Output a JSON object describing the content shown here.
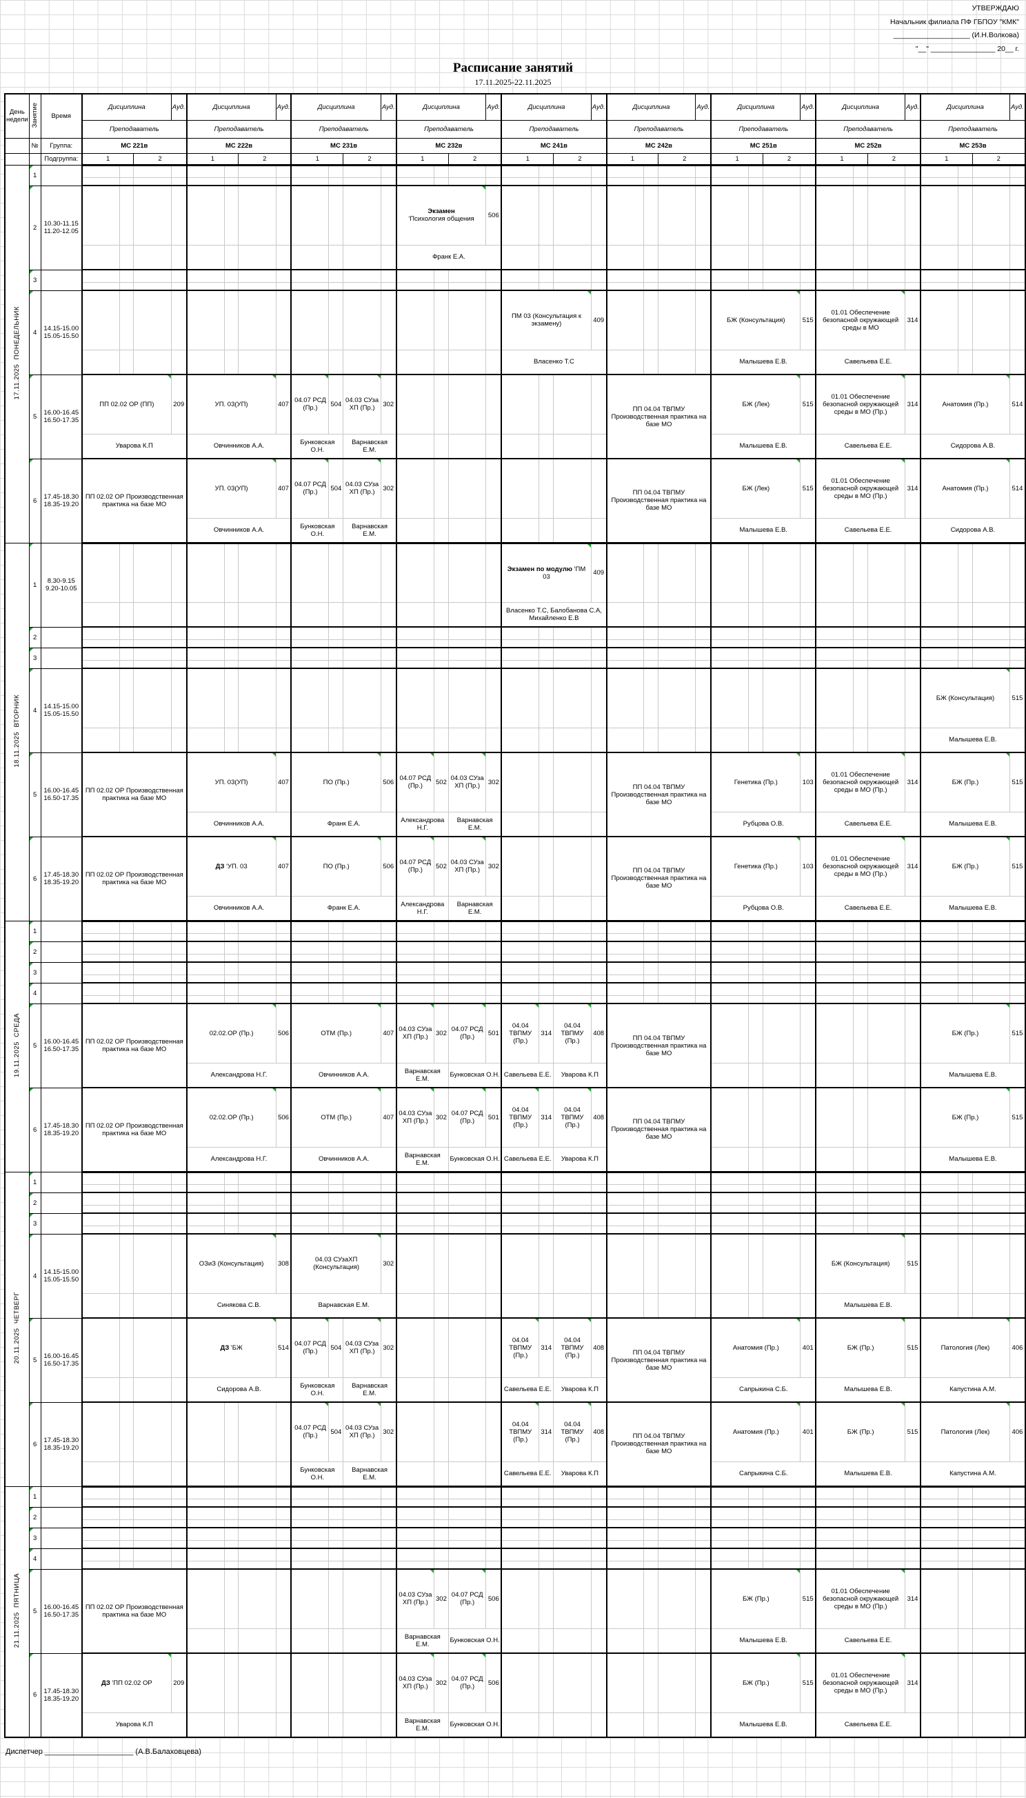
{
  "approval": {
    "line1": "УТВЕРЖДАЮ",
    "line2": "Начальник филиала ПФ ГБПОУ \"КМК\"",
    "line3": "___________________ (И.Н.Волкова)",
    "line4": "\"__\" ________________ 20__ г."
  },
  "title": "Расписание занятий",
  "date_range": "17.11.2025-22.11.2025",
  "footer": {
    "label": "Диспетчер",
    "underline": "_____________________",
    "name": "(А.В.Балаховцева)"
  },
  "colors": {
    "flag_green": "#1fa32c",
    "grid_line": "#dadada",
    "table_border": "#000000"
  },
  "schedule": {
    "header": {
      "day": "День недели",
      "lesson": "Занятие",
      "time": "Время",
      "discipline": "Дисциплина",
      "aud": "Ауд.",
      "teacher": "Преподаватель",
      "num": "№",
      "group_label": "Группа:",
      "subgroup_label": "Подгруппа:",
      "subgroups": [
        "1",
        "2"
      ]
    },
    "groups": [
      "МС 221в",
      "МС 222в",
      "МС 231в",
      "МС 232в",
      "МС 241в",
      "МС 242в",
      "МС 251в",
      "МС 252в",
      "МС 253в"
    ],
    "days": [
      {
        "name": "ПОНЕДЕЛЬНИК",
        "date": "17.11.2025",
        "lessons": [
          {
            "n": "1"
          },
          {
            "n": "2",
            "time": [
              "10.30-11.15",
              "11.20-12.05"
            ],
            "cells": {
              "3": {
                "bold": "Экзамен",
                "nl": true,
                "d": "'Психология общения",
                "a": "506",
                "t": "Франк Е.А."
              }
            }
          },
          {
            "n": "3"
          },
          {
            "n": "4",
            "time": [
              "14.15-15.00",
              "15.05-15.50"
            ],
            "cells": {
              "4": {
                "d": "ПМ 03 (Консультация к экзамену)",
                "a": "409",
                "t": "Власенко Т.С"
              },
              "6": {
                "d": "БЖ (Консультация)",
                "a": "515",
                "t": "Малышева Е.В."
              },
              "7": {
                "d": "01.01 Обеспечение безопасной окружающей среды в МО",
                "a": "314",
                "t": "Савельева Е.Е."
              }
            }
          },
          {
            "n": "5",
            "time": [
              "16.00-16.45",
              "16.50-17.35"
            ],
            "cells": {
              "0": {
                "d": "ПП 02.02 ОР (ПП)",
                "a": "209",
                "t": "Уварова К.П"
              },
              "1": {
                "d": "УП. 03(УП)",
                "a": "407",
                "t": "Овчинников А.А."
              },
              "2": {
                "split": [
                  {
                    "d": "04.07 РСД (Пр.)",
                    "a": "504",
                    "t": "Бунковская О.Н."
                  },
                  {
                    "d": "04.03 СУза ХП (Пр.)",
                    "a": "302",
                    "t": "Варнавская Е.М."
                  }
                ]
              },
              "5": {
                "merged": true,
                "d": "ПП 04.04 ТВПМУ Производственная практика на базе МО"
              },
              "6": {
                "d": "БЖ (Лек)",
                "a": "515",
                "t": "Малышева Е.В."
              },
              "7": {
                "d": "01.01 Обеспечение безопасной окружающей среды в МО (Пр.)",
                "a": "314",
                "t": "Савельева Е.Е."
              },
              "8": {
                "d": "Анатомия (Пр.)",
                "a": "514",
                "t": "Сидорова А.В."
              }
            }
          },
          {
            "n": "6",
            "time": [
              "17.45-18.30",
              "18.35-19.20"
            ],
            "cells": {
              "0": {
                "merged": true,
                "d": "ПП 02.02 ОР Производственная практика на базе МО"
              },
              "1": {
                "d": "УП. 03(УП)",
                "a": "407",
                "t": "Овчинников А.А."
              },
              "2": {
                "split": [
                  {
                    "d": "04.07 РСД (Пр.)",
                    "a": "504",
                    "t": "Бунковская О.Н."
                  },
                  {
                    "d": "04.03 СУза ХП (Пр.)",
                    "a": "302",
                    "t": "Варнавская Е.М."
                  }
                ]
              },
              "5": {
                "merged": true,
                "d": "ПП 04.04 ТВПМУ Производственная практика на базе МО"
              },
              "6": {
                "d": "БЖ (Лек)",
                "a": "515",
                "t": "Малышева Е.В."
              },
              "7": {
                "d": "01.01 Обеспечение безопасной окружающей среды в МО (Пр.)",
                "a": "314",
                "t": "Савельева Е.Е."
              },
              "8": {
                "d": "Анатомия (Пр.)",
                "a": "514",
                "t": "Сидорова А.В."
              }
            }
          }
        ]
      },
      {
        "name": "ВТОРНИК",
        "date": "18.11.2025",
        "lessons": [
          {
            "n": "1",
            "time": [
              "8.30-9.15",
              "9.20-10.05"
            ],
            "cells": {
              "4": {
                "bold": "Экзамен по модулю",
                "d": "'ПМ 03",
                "a": "409",
                "t": "Власенко Т.С, Балобанова С.А, Михайленко Е.В"
              }
            }
          },
          {
            "n": "2"
          },
          {
            "n": "3"
          },
          {
            "n": "4",
            "time": [
              "14.15-15.00",
              "15.05-15.50"
            ],
            "cells": {
              "8": {
                "d": "БЖ (Консультация)",
                "a": "515",
                "t": "Малышева Е.В."
              }
            }
          },
          {
            "n": "5",
            "time": [
              "16.00-16.45",
              "16.50-17.35"
            ],
            "cells": {
              "0": {
                "merged": true,
                "d": "ПП 02.02 ОР Производственная практика на базе МО"
              },
              "1": {
                "d": "УП. 03(УП)",
                "a": "407",
                "t": "Овчинников А.А."
              },
              "2": {
                "d": "ПО (Пр.)",
                "a": "506",
                "t": "Франк Е.А."
              },
              "3": {
                "split": [
                  {
                    "d": "04.07 РСД (Пр.)",
                    "a": "502",
                    "t": "Александрова Н.Г."
                  },
                  {
                    "d": "04.03 СУза ХП (Пр.)",
                    "a": "302",
                    "t": "Варнавская Е.М."
                  }
                ]
              },
              "5": {
                "merged": true,
                "d": "ПП 04.04 ТВПМУ Производственная практика на базе МО"
              },
              "6": {
                "d": "Генетика (Пр.)",
                "a": "103",
                "t": "Рубцова О.В."
              },
              "7": {
                "d": "01.01 Обеспечение безопасной окружающей среды в МО (Пр.)",
                "a": "314",
                "t": "Савельева Е.Е."
              },
              "8": {
                "d": "БЖ (Пр.)",
                "a": "515",
                "t": "Малышева Е.В."
              }
            }
          },
          {
            "n": "6",
            "time": [
              "17.45-18.30",
              "18.35-19.20"
            ],
            "cells": {
              "0": {
                "merged": true,
                "d": "ПП 02.02 ОР Производственная практика на базе МО"
              },
              "1": {
                "bold": "ДЗ",
                "d": "'УП. 03",
                "a": "407",
                "t": "Овчинников А.А."
              },
              "2": {
                "d": "ПО (Пр.)",
                "a": "506",
                "t": "Франк Е.А."
              },
              "3": {
                "split": [
                  {
                    "d": "04.07 РСД (Пр.)",
                    "a": "502",
                    "t": "Александрова Н.Г."
                  },
                  {
                    "d": "04.03 СУза ХП (Пр.)",
                    "a": "302",
                    "t": "Варнавская Е.М."
                  }
                ]
              },
              "5": {
                "merged": true,
                "d": "ПП 04.04 ТВПМУ Производственная практика на базе МО"
              },
              "6": {
                "d": "Генетика (Пр.)",
                "a": "103",
                "t": "Рубцова О.В."
              },
              "7": {
                "d": "01.01 Обеспечение безопасной окружающей среды в МО (Пр.)",
                "a": "314",
                "t": "Савельева Е.Е."
              },
              "8": {
                "d": "БЖ (Пр.)",
                "a": "515",
                "t": "Малышева Е.В."
              }
            }
          }
        ]
      },
      {
        "name": "СРЕДА",
        "date": "19.11.2025",
        "lessons": [
          {
            "n": "1"
          },
          {
            "n": "2"
          },
          {
            "n": "3"
          },
          {
            "n": "4"
          },
          {
            "n": "5",
            "time": [
              "16.00-16.45",
              "16.50-17.35"
            ],
            "cells": {
              "0": {
                "merged": true,
                "d": "ПП 02.02 ОР Производственная практика на базе МО"
              },
              "1": {
                "d": "02.02.ОР (Пр.)",
                "a": "506",
                "t": "Александрова Н.Г."
              },
              "2": {
                "d": "ОТМ (Пр.)",
                "a": "407",
                "t": "Овчинников А.А."
              },
              "3": {
                "split": [
                  {
                    "d": "04.03 СУза ХП (Пр.)",
                    "a": "302",
                    "t": "Варнавская Е.М."
                  },
                  {
                    "d": "04.07 РСД (Пр.)",
                    "a": "501",
                    "t": "Бунковская О.Н."
                  }
                ]
              },
              "4": {
                "split": [
                  {
                    "d": "04.04 ТВПМУ (Пр.)",
                    "a": "314",
                    "t": "Савельева Е.Е."
                  },
                  {
                    "d": "04.04 ТВПМУ (Пр.)",
                    "a": "408",
                    "t": "Уварова К.П"
                  }
                ]
              },
              "5": {
                "merged": true,
                "d": "ПП 04.04 ТВПМУ Производственная практика на базе МО"
              },
              "8": {
                "d": "БЖ (Пр.)",
                "a": "515",
                "t": "Малышева Е.В."
              }
            }
          },
          {
            "n": "6",
            "time": [
              "17.45-18.30",
              "18.35-19.20"
            ],
            "cells": {
              "0": {
                "merged": true,
                "d": "ПП 02.02 ОР Производственная практика на базе МО"
              },
              "1": {
                "d": "02.02.ОР (Пр.)",
                "a": "506",
                "t": "Александрова Н.Г."
              },
              "2": {
                "d": "ОТМ (Пр.)",
                "a": "407",
                "t": "Овчинников А.А."
              },
              "3": {
                "split": [
                  {
                    "d": "04.03 СУза ХП (Пр.)",
                    "a": "302",
                    "t": "Варнавская Е.М."
                  },
                  {
                    "d": "04.07 РСД (Пр.)",
                    "a": "501",
                    "t": "Бунковская О.Н."
                  }
                ]
              },
              "4": {
                "split": [
                  {
                    "d": "04.04 ТВПМУ (Пр.)",
                    "a": "314",
                    "t": "Савельева Е.Е."
                  },
                  {
                    "d": "04.04 ТВПМУ (Пр.)",
                    "a": "408",
                    "t": "Уварова К.П"
                  }
                ]
              },
              "5": {
                "merged": true,
                "d": "ПП 04.04 ТВПМУ Производственная практика на базе МО"
              },
              "8": {
                "d": "БЖ (Пр.)",
                "a": "515",
                "t": "Малышева Е.В."
              }
            }
          }
        ]
      },
      {
        "name": "ЧЕТВЕРГ",
        "date": "20.11.2025",
        "lessons": [
          {
            "n": "1"
          },
          {
            "n": "2"
          },
          {
            "n": "3"
          },
          {
            "n": "4",
            "time": [
              "14.15-15.00",
              "15.05-15.50"
            ],
            "cells": {
              "1": {
                "d": "ОЗиЗ (Консультация)",
                "a": "308",
                "t": "Синякова С.В."
              },
              "2": {
                "d": "04.03 СУзаХП (Консультация)",
                "a": "302",
                "t": "Варнавская Е.М."
              },
              "7": {
                "d": "БЖ (Консультация)",
                "a": "515",
                "t": "Малышева Е.В."
              }
            }
          },
          {
            "n": "5",
            "time": [
              "16.00-16.45",
              "16.50-17.35"
            ],
            "cells": {
              "1": {
                "bold": "ДЗ",
                "d": "'БЖ",
                "a": "514",
                "t": "Сидорова А.В."
              },
              "2": {
                "split": [
                  {
                    "d": "04.07 РСД (Пр.)",
                    "a": "504",
                    "t": "Бунковская О.Н."
                  },
                  {
                    "d": "04.03 СУза ХП (Пр.)",
                    "a": "302",
                    "t": "Варнавская Е.М."
                  }
                ]
              },
              "4": {
                "split": [
                  {
                    "d": "04.04 ТВПМУ (Пр.)",
                    "a": "314",
                    "t": "Савельева Е.Е."
                  },
                  {
                    "d": "04.04 ТВПМУ (Пр.)",
                    "a": "408",
                    "t": "Уварова К.П"
                  }
                ]
              },
              "5": {
                "merged": true,
                "d": "ПП 04.04 ТВПМУ Производственная практика на базе МО"
              },
              "6": {
                "d": "Анатомия (Пр.)",
                "a": "401",
                "t": "Сапрыкина С.Б."
              },
              "7": {
                "d": "БЖ (Пр.)",
                "a": "515",
                "t": "Малышева Е.В."
              },
              "8": {
                "d": "Патология (Лек)",
                "a": "406",
                "t": "Капустина А.М."
              }
            }
          },
          {
            "n": "6",
            "time": [
              "17.45-18.30",
              "18.35-19.20"
            ],
            "cells": {
              "2": {
                "split": [
                  {
                    "d": "04.07 РСД (Пр.)",
                    "a": "504",
                    "t": "Бунковская О.Н."
                  },
                  {
                    "d": "04.03 СУза ХП (Пр.)",
                    "a": "302",
                    "t": "Варнавская Е.М."
                  }
                ]
              },
              "4": {
                "split": [
                  {
                    "d": "04.04 ТВПМУ (Пр.)",
                    "a": "314",
                    "t": "Савельева Е.Е."
                  },
                  {
                    "d": "04.04 ТВПМУ (Пр.)",
                    "a": "408",
                    "t": "Уварова К.П"
                  }
                ]
              },
              "5": {
                "merged": true,
                "d": "ПП 04.04 ТВПМУ Производственная практика на базе МО"
              },
              "6": {
                "d": "Анатомия (Пр.)",
                "a": "401",
                "t": "Сапрыкина С.Б."
              },
              "7": {
                "d": "БЖ (Пр.)",
                "a": "515",
                "t": "Малышева Е.В."
              },
              "8": {
                "d": "Патология (Лек)",
                "a": "406",
                "t": "Капустина А.М."
              }
            }
          }
        ]
      },
      {
        "name": "ПЯТНИЦА",
        "date": "21.11.2025",
        "lessons": [
          {
            "n": "1"
          },
          {
            "n": "2"
          },
          {
            "n": "3"
          },
          {
            "n": "4"
          },
          {
            "n": "5",
            "time": [
              "16.00-16.45",
              "16.50-17.35"
            ],
            "cells": {
              "0": {
                "merged": true,
                "d": "ПП 02.02 ОР Производственная практика на базе МО"
              },
              "3": {
                "split": [
                  {
                    "d": "04.03 СУза ХП (Пр.)",
                    "a": "302",
                    "t": "Варнавская Е.М."
                  },
                  {
                    "d": "04.07 РСД (Пр.)",
                    "a": "506",
                    "t": "Бунковская О.Н."
                  }
                ]
              },
              "6": {
                "d": "БЖ (Пр.)",
                "a": "515",
                "t": "Малышева Е.В."
              },
              "7": {
                "d": "01.01 Обеспечение безопасной окружающей среды в МО (Пр.)",
                "a": "314",
                "t": "Савельева Е.Е."
              }
            }
          },
          {
            "n": "6",
            "time": [
              "17.45-18.30",
              "18.35-19.20"
            ],
            "cells": {
              "0": {
                "bold": "ДЗ",
                "d": "'ПП 02.02 ОР",
                "a": "209",
                "t": "Уварова К.П"
              },
              "3": {
                "split": [
                  {
                    "d": "04.03 СУза ХП (Пр.)",
                    "a": "302",
                    "t": "Варнавская Е.М."
                  },
                  {
                    "d": "04.07 РСД (Пр.)",
                    "a": "506",
                    "t": "Бунковская О.Н."
                  }
                ]
              },
              "6": {
                "d": "БЖ (Пр.)",
                "a": "515",
                "t": "Малышева Е.В."
              },
              "7": {
                "d": "01.01 Обеспечение безопасной окружающей среды в МО (Пр.)",
                "a": "314",
                "t": "Савельева Е.Е."
              }
            }
          }
        ]
      }
    ]
  }
}
